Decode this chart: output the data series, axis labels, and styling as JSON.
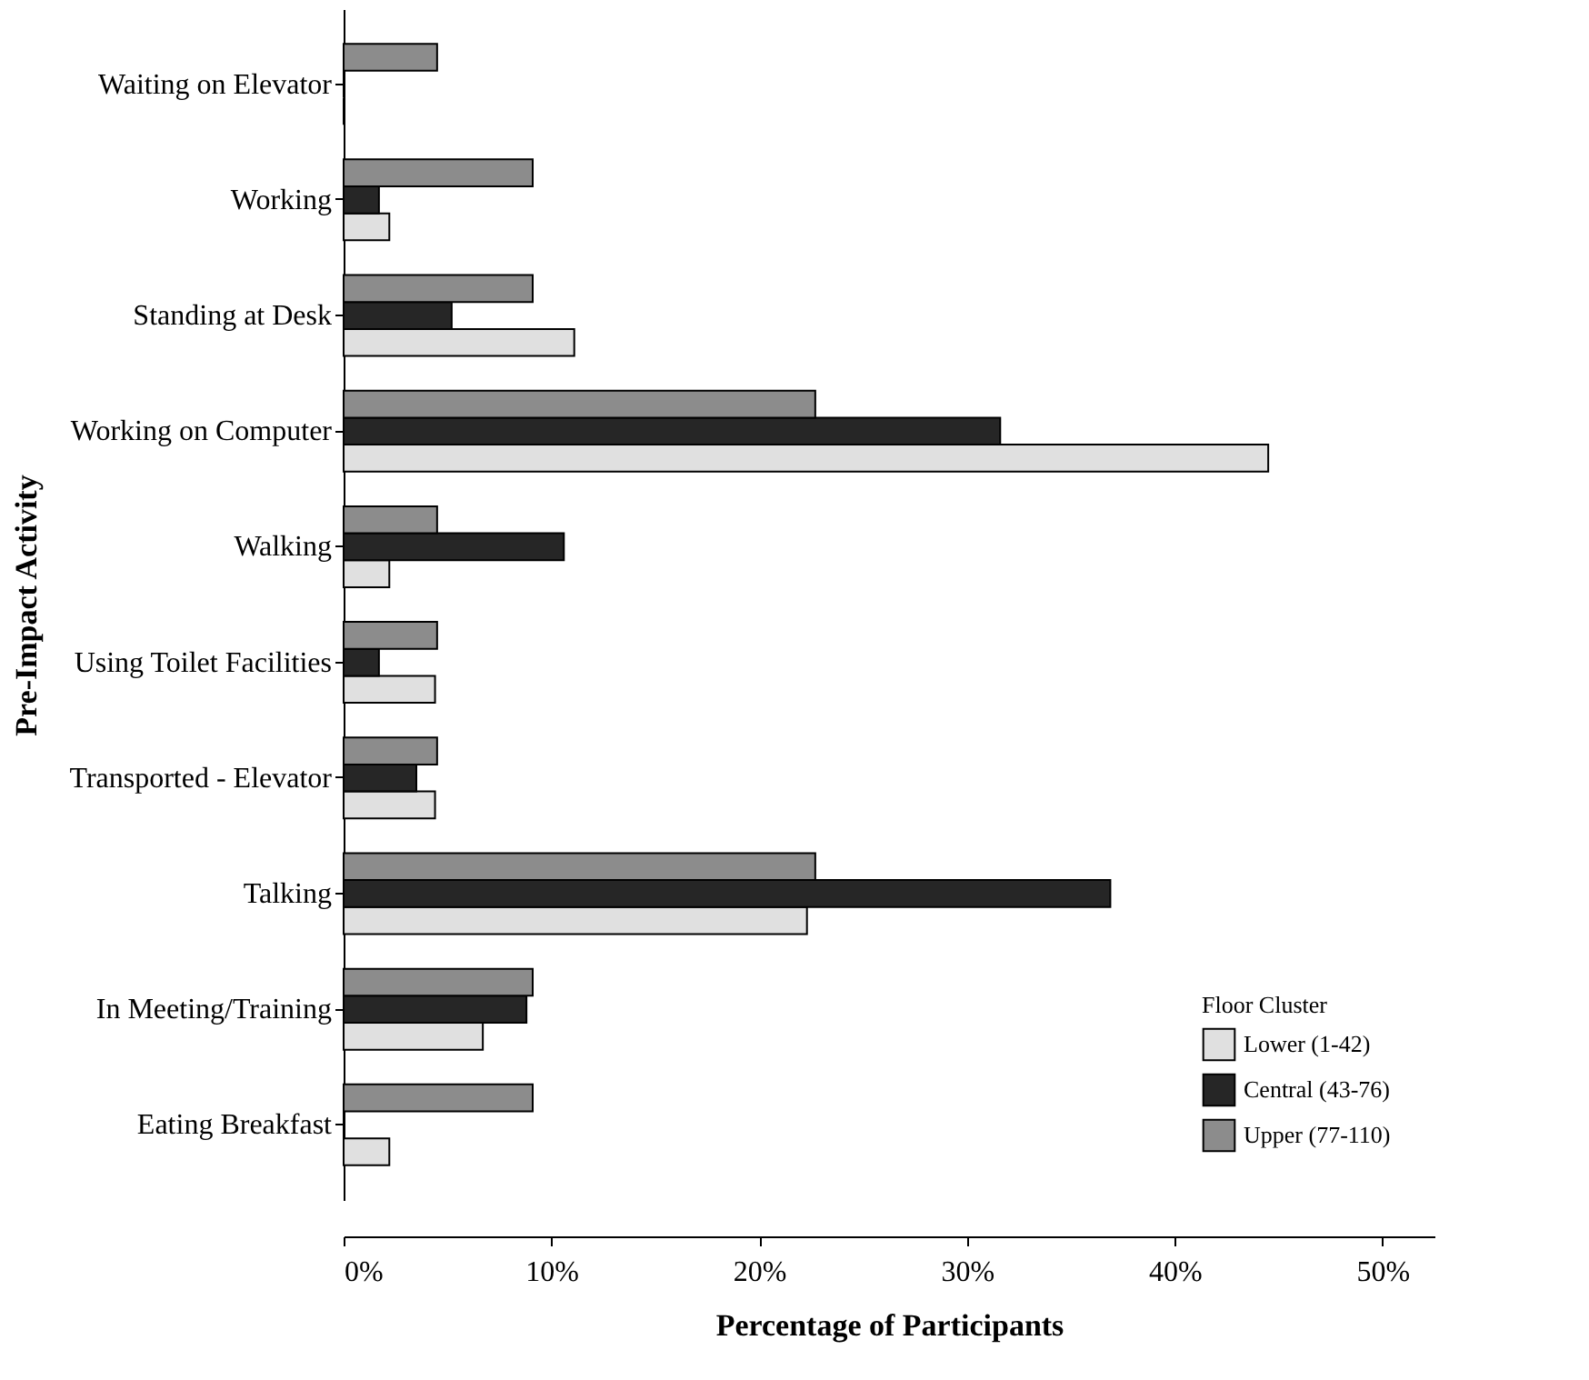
{
  "chart_data": {
    "type": "bar",
    "orientation": "horizontal",
    "xlabel": "Percentage of Participants",
    "ylabel": "Pre-Impact Activity",
    "legend_title": "Floor Cluster",
    "legend": "bottom right",
    "grid": false,
    "categories": [
      "Waiting on Elevator",
      "Working",
      "Standing at Desk",
      "Working on Computer",
      "Walking",
      "Using Toilet Facilities",
      "Transported - Elevator",
      "Talking",
      "In Meeting/Training",
      "Eating Breakfast"
    ],
    "series": [
      {
        "name": "Lower (1-42)",
        "color": "#e0e0e0",
        "values": [
          0,
          2.2,
          11.1,
          44.5,
          2.2,
          4.4,
          4.4,
          22.3,
          6.7,
          2.2
        ]
      },
      {
        "name": "Central (43-76)",
        "color": "#262626",
        "values": [
          0,
          1.7,
          5.2,
          31.6,
          10.6,
          1.7,
          3.5,
          36.9,
          8.8,
          0
        ]
      },
      {
        "name": "Upper (77-110)",
        "color": "#8c8c8c",
        "values": [
          4.5,
          9.1,
          9.1,
          22.7,
          4.5,
          4.5,
          4.5,
          22.7,
          9.1,
          9.1
        ]
      }
    ],
    "xlim": [
      0,
      52.5
    ],
    "xticks": [
      {
        "value": 0,
        "label": "0%"
      },
      {
        "value": 10,
        "label": "10%"
      },
      {
        "value": 20,
        "label": "20%"
      },
      {
        "value": 30,
        "label": "30%"
      },
      {
        "value": 40,
        "label": "40%"
      },
      {
        "value": 50,
        "label": "50%"
      }
    ]
  }
}
